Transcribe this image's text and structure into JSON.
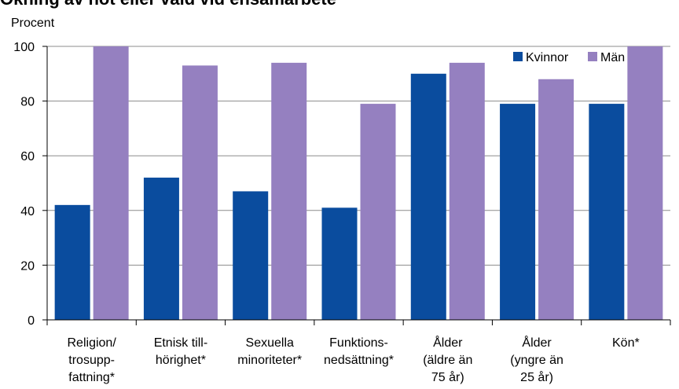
{
  "chart_data": {
    "type": "bar",
    "title": "Ökning av hot eller våld vid ensamarbete",
    "ylabel": "Procent",
    "xlabel": "",
    "ylim": [
      0,
      100
    ],
    "yticks": [
      0,
      20,
      40,
      60,
      80,
      100
    ],
    "grid": true,
    "legend_position": "top-right",
    "categories": [
      [
        "Religion/",
        "trosupp-",
        "fattning*"
      ],
      [
        "Etnisk till-",
        "hörighet*"
      ],
      [
        "Sexuella",
        "minoriteter*"
      ],
      [
        "Funktions-",
        "nedsättning*"
      ],
      [
        "Ålder",
        "(äldre än",
        "75 år)"
      ],
      [
        "Ålder",
        "(yngre än",
        "25 år)"
      ],
      [
        "Kön*"
      ]
    ],
    "series": [
      {
        "name": "Kvinnor",
        "color": "#0a4c9e",
        "values": [
          42,
          52,
          47,
          41,
          90,
          79,
          79
        ]
      },
      {
        "name": "Män",
        "color": "#9580c0",
        "values": [
          100,
          93,
          94,
          79,
          94,
          88,
          100
        ]
      }
    ]
  }
}
